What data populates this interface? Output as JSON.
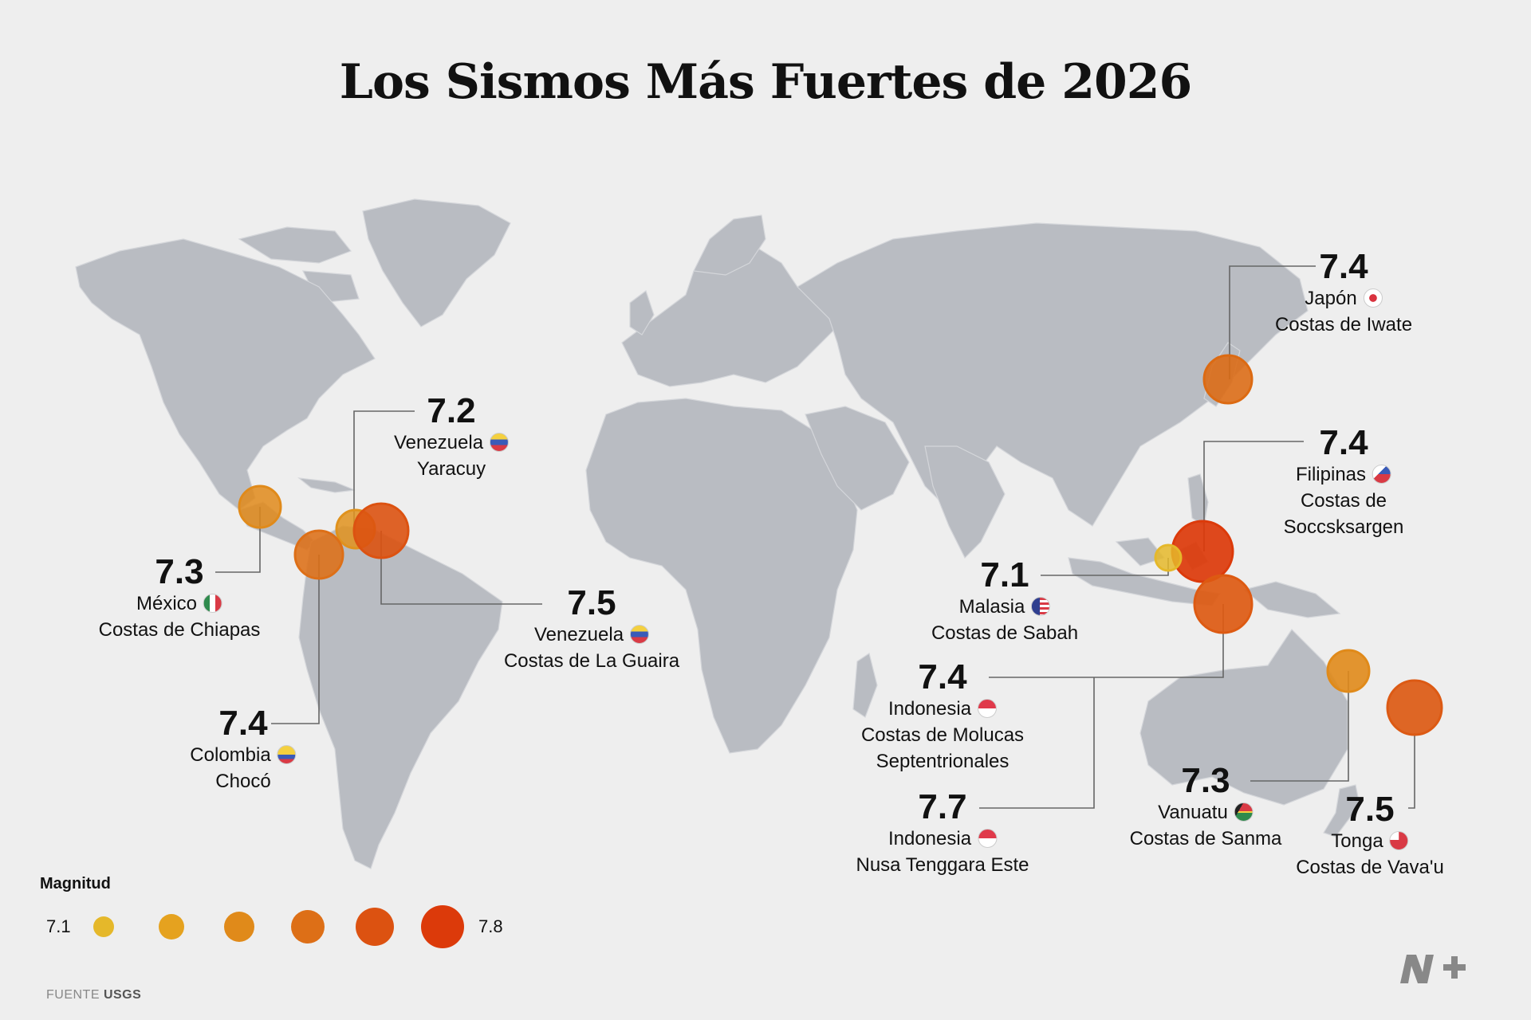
{
  "title": "Los Sismos Más Fuertes de 2026",
  "legend": {
    "title": "Magnitud",
    "min_label": "7.1",
    "max_label": "7.8",
    "colors": [
      "#e5b82a",
      "#e5a21f",
      "#e08a1a",
      "#dd6f17",
      "#dc5211",
      "#dc3a0a"
    ]
  },
  "source": {
    "prefix": "FUENTE",
    "name": "USGS"
  },
  "logo": "N+",
  "quakes": [
    {
      "magnitude": "7.4",
      "country": "Japón",
      "region": "Costas de Iwate",
      "flag": "japan-flag",
      "color": "#dc6a12"
    },
    {
      "magnitude": "7.4",
      "country": "Filipinas",
      "region_lines": [
        "Costas de",
        "Soccsksargen"
      ],
      "flag": "philippines-flag",
      "color": "#dc3a0a"
    },
    {
      "magnitude": "7.2",
      "country": "Venezuela",
      "region": "Yaracuy",
      "flag": "venezuela-flag",
      "color": "#e0921d"
    },
    {
      "magnitude": "7.3",
      "country": "México",
      "region": "Costas de Chiapas",
      "flag": "mexico-flag",
      "color": "#e08a1a"
    },
    {
      "magnitude": "7.5",
      "country": "Venezuela",
      "region": "Costas de La Guaira",
      "flag": "venezuela-flag",
      "color": "#dc5211"
    },
    {
      "magnitude": "7.4",
      "country": "Colombia",
      "region": "Chocó",
      "flag": "colombia-flag",
      "color": "#dd6f17"
    },
    {
      "magnitude": "7.1",
      "country": "Malasia",
      "region": "Costas de Sabah",
      "flag": "malaysia-flag",
      "color": "#e5b82a"
    },
    {
      "magnitude": "7.4",
      "country": "Indonesia",
      "region_lines": [
        "Costas de Molucas",
        "Septentrionales"
      ],
      "flag": "indonesia-flag",
      "color": "#dd5a12"
    },
    {
      "magnitude": "7.7",
      "country": "Indonesia",
      "region": "Nusa Tenggara Este",
      "flag": "indonesia-flag",
      "color": "#dc3a0a"
    },
    {
      "magnitude": "7.3",
      "country": "Vanuatu",
      "region": "Costas de Sanma",
      "flag": "vanuatu-flag",
      "color": "#e08a1a"
    },
    {
      "magnitude": "7.5",
      "country": "Tonga",
      "region": "Costas de Vava'u",
      "flag": "tonga-flag",
      "color": "#dc5a14"
    }
  ]
}
